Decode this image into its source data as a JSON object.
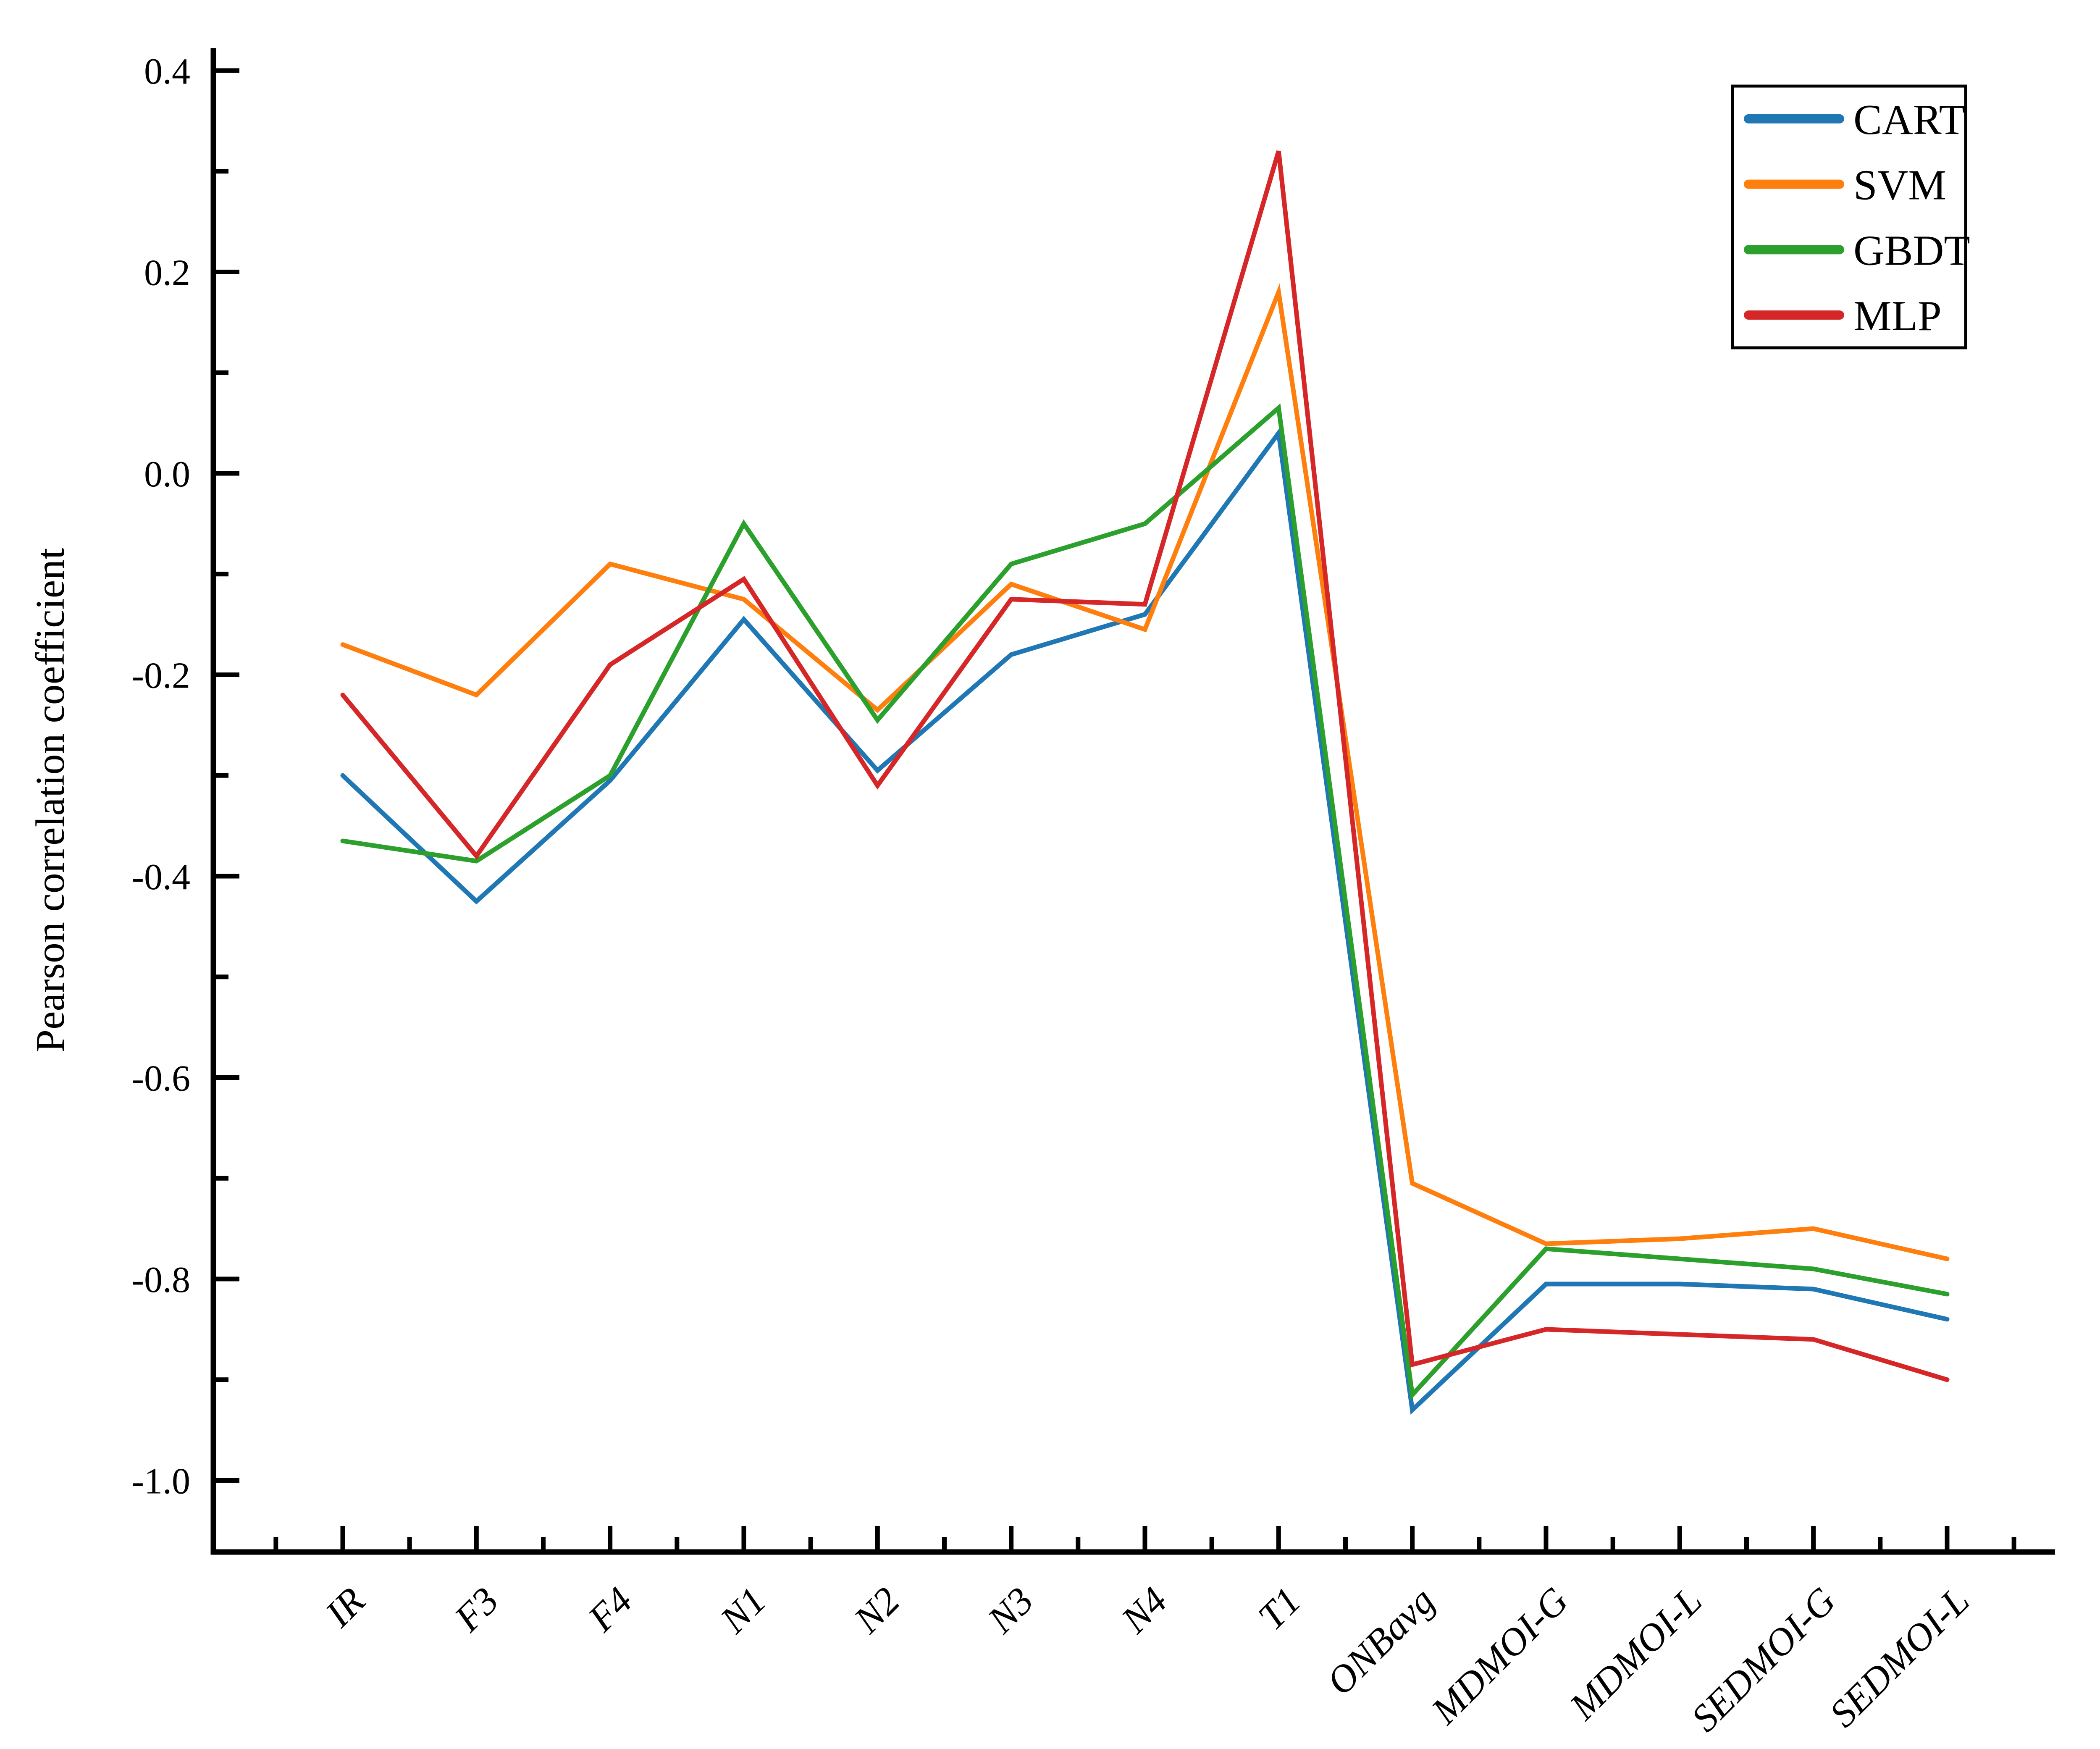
{
  "figure": {
    "background": "#ffffff"
  },
  "chart_data": {
    "type": "line",
    "title": "",
    "xlabel": "",
    "ylabel": "Pearson correlation coefficient",
    "categories": [
      "IR",
      "F3",
      "F4",
      "N1",
      "N2",
      "N3",
      "N4",
      "T1",
      "ONBavg",
      "MDMOI-G",
      "MDMOI-L",
      "SEDMOI-G",
      "SEDMOI-L"
    ],
    "series": [
      {
        "name": "CART",
        "color": "#1f77b4",
        "values": [
          -0.3,
          -0.425,
          -0.305,
          -0.145,
          -0.295,
          -0.18,
          -0.14,
          0.04,
          -0.93,
          -0.805,
          -0.805,
          -0.81,
          -0.84
        ]
      },
      {
        "name": "SVM",
        "color": "#ff7f0e",
        "values": [
          -0.17,
          -0.22,
          -0.09,
          -0.125,
          -0.235,
          -0.11,
          -0.155,
          0.18,
          -0.705,
          -0.765,
          -0.76,
          -0.75,
          -0.78
        ]
      },
      {
        "name": "GBDT",
        "color": "#2ca02c",
        "values": [
          -0.365,
          -0.385,
          -0.3,
          -0.05,
          -0.245,
          -0.09,
          -0.05,
          0.065,
          -0.915,
          -0.77,
          -0.78,
          -0.79,
          -0.815
        ]
      },
      {
        "name": "MLP",
        "color": "#d62728",
        "values": [
          -0.22,
          -0.38,
          -0.19,
          -0.105,
          -0.31,
          -0.125,
          -0.13,
          0.32,
          -0.885,
          -0.85,
          -0.855,
          -0.86,
          -0.9
        ]
      }
    ],
    "ylim": [
      -1.07,
      0.42
    ],
    "yticks_major": [
      0.4,
      0.2,
      0.0,
      -0.2,
      -0.4,
      -0.6,
      -0.8,
      -1.0
    ],
    "ytick_labels": [
      "0.4",
      "0.2",
      "0.0",
      "-0.2",
      "-0.4",
      "-0.6",
      "-0.8",
      "-1.0"
    ],
    "yticks_minor": [
      0.3,
      0.1,
      -0.1,
      -0.3,
      -0.5,
      -0.7,
      -0.9
    ],
    "grid": "off",
    "legend_position": "upper-right",
    "legend": [
      "CART",
      "SVM",
      "GBDT",
      "MLP"
    ]
  }
}
